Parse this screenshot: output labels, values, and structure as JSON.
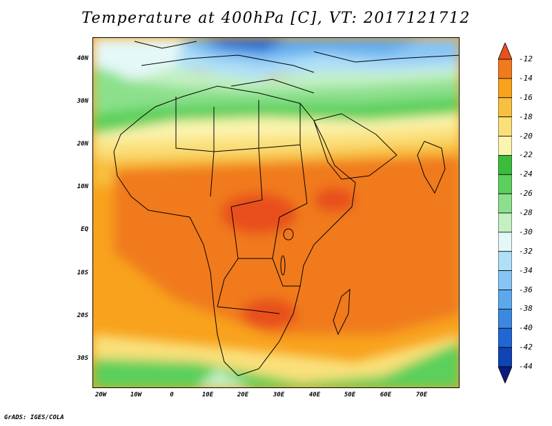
{
  "title": "Temperature at 400hPa [C], VT: 2017121712",
  "credit": "GrADS: IGES/COLA",
  "map": {
    "lat_labels": [
      "40N",
      "30N",
      "20N",
      "10N",
      "EQ",
      "10S",
      "20S",
      "30S"
    ],
    "lon_labels": [
      "20W",
      "10W",
      "0",
      "10E",
      "20E",
      "30E",
      "40E",
      "50E",
      "60E",
      "70E"
    ],
    "lat_range": [
      -37,
      45
    ],
    "lon_range": [
      -23,
      80
    ]
  },
  "colorbar": {
    "labels": [
      "-12",
      "-14",
      "-16",
      "-18",
      "-20",
      "-22",
      "-24",
      "-26",
      "-28",
      "-30",
      "-32",
      "-34",
      "-36",
      "-38",
      "-40",
      "-42",
      "-44"
    ],
    "colors": [
      "#e8501e",
      "#f07a1e",
      "#f8a21e",
      "#f8c040",
      "#fae07a",
      "#fbf4ae",
      "#3cbc3c",
      "#5cd05c",
      "#8ce08c",
      "#c4f0c4",
      "#e4f8f8",
      "#b0e0f8",
      "#88c4f4",
      "#5ca8ec",
      "#3c88e0",
      "#2066d4",
      "#1044b4",
      "#0c1c7c"
    ]
  }
}
